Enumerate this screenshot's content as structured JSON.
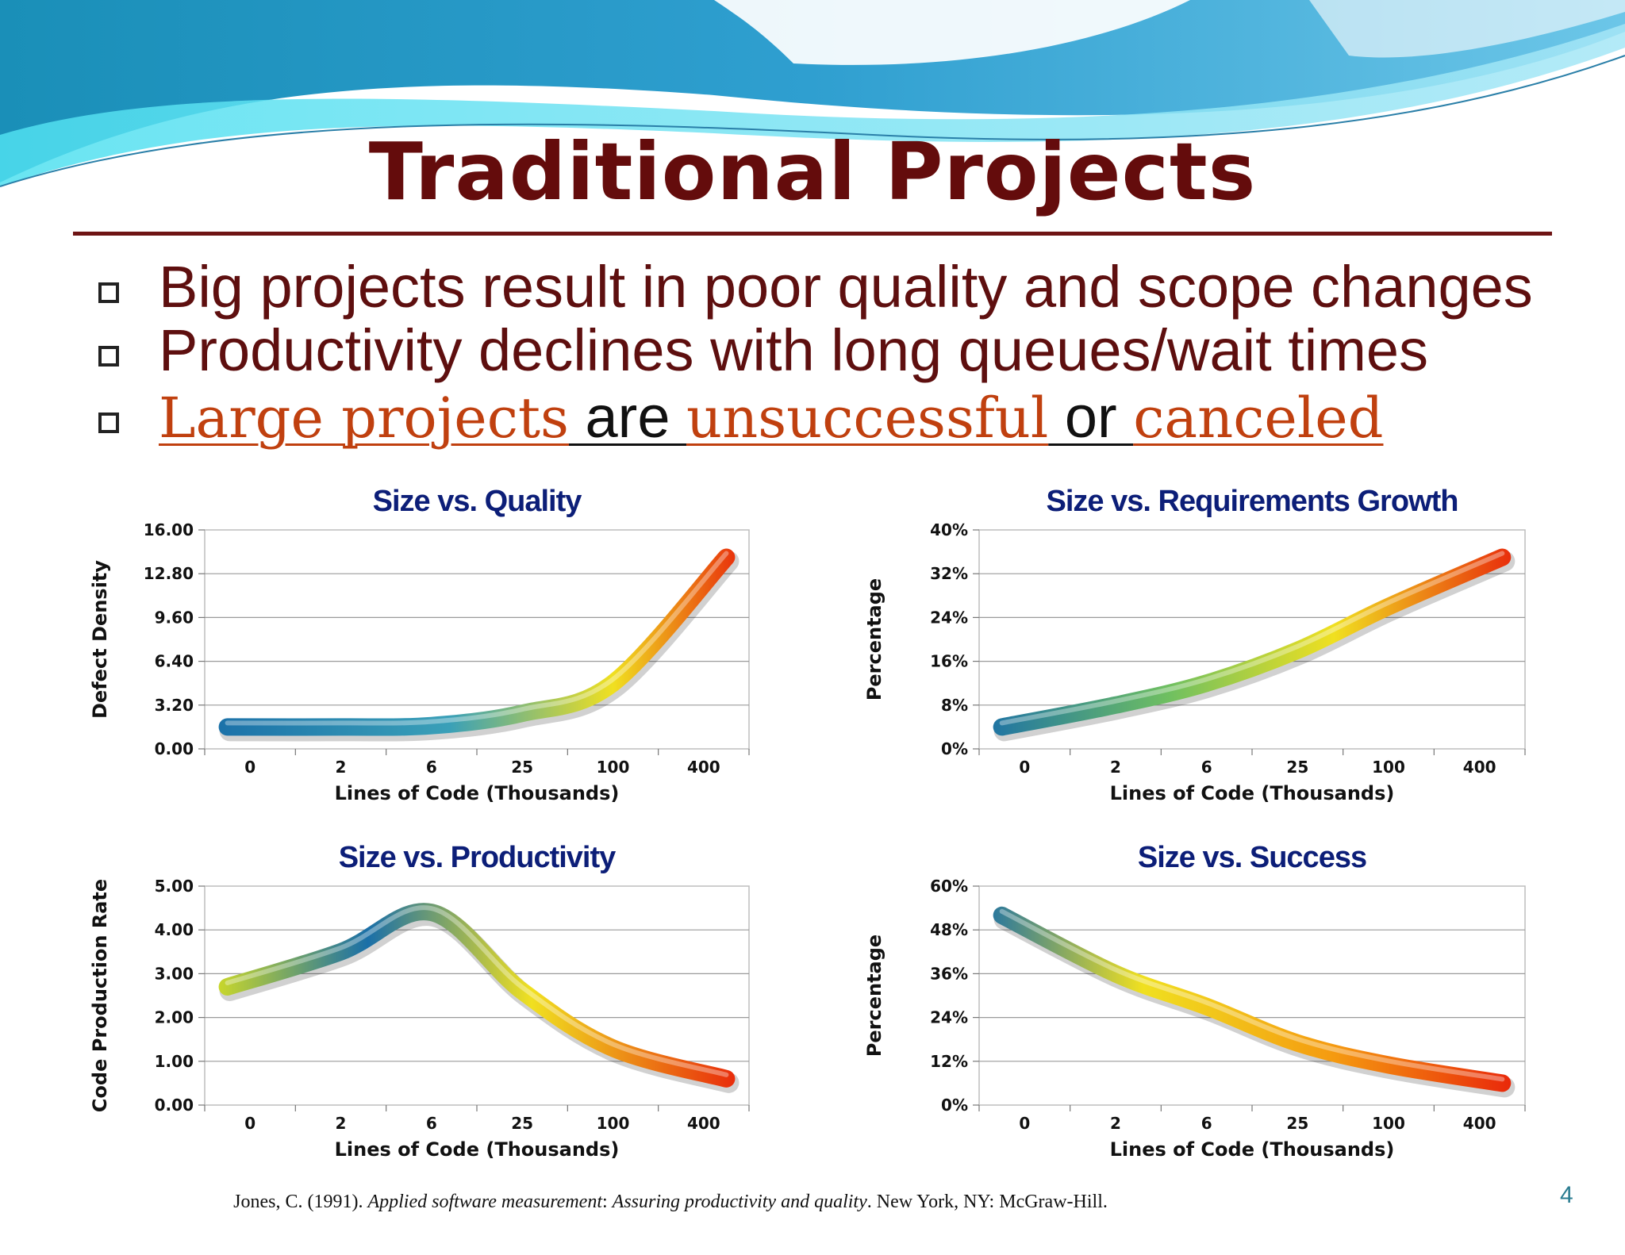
{
  "slide": {
    "title": "Traditional Projects",
    "page_number": "4",
    "bullets": [
      "Big projects result in poor quality and scope changes",
      "Productivity declines with long queues/wait times"
    ],
    "bullet3": {
      "part1": "Large projects",
      "part2": " are ",
      "part3": "unsuccessful",
      "part4": " or ",
      "part5": "canceled"
    },
    "citation": {
      "author": "Jones, C. (1991). ",
      "title_italic": "Applied software measurement",
      "colon": ": ",
      "subtitle_italic": "Assuring productivity and quality",
      "publisher": ". New York, NY: McGraw-Hill."
    },
    "colors": {
      "title": "#640c0c",
      "bullet_text": "#5e0f0f",
      "link": "#c0400f",
      "chart_title": "#0c1e78"
    }
  },
  "chart_data": [
    {
      "type": "line",
      "title": "Size vs. Quality",
      "xlabel": "Lines of Code (Thousands)",
      "ylabel": "Defect Density",
      "categories": [
        "0",
        "2",
        "6",
        "25",
        "100",
        "400"
      ],
      "ylim": [
        0,
        16
      ],
      "yticks": [
        "0.00",
        "3.20",
        "6.40",
        "9.60",
        "12.80",
        "16.00"
      ],
      "values": [
        1.6,
        1.6,
        1.7,
        2.6,
        4.8,
        14.0
      ],
      "grid": true,
      "color_scale": "blue to red"
    },
    {
      "type": "line",
      "title": "Size vs. Requirements Growth",
      "xlabel": "Lines of Code (Thousands)",
      "ylabel": "Percentage",
      "categories": [
        "0",
        "2",
        "6",
        "25",
        "100",
        "400"
      ],
      "ylim": [
        0,
        40
      ],
      "yticks": [
        "0%",
        "8%",
        "16%",
        "24%",
        "32%",
        "40%"
      ],
      "values": [
        4,
        8,
        12,
        18,
        26,
        35
      ],
      "grid": true,
      "color_scale": "blue to red"
    },
    {
      "type": "line",
      "title": "Size vs. Productivity",
      "xlabel": "Lines of Code (Thousands)",
      "ylabel": "Code Production Rate",
      "categories": [
        "0",
        "2",
        "6",
        "25",
        "100",
        "400"
      ],
      "ylim": [
        0,
        5
      ],
      "yticks": [
        "0.00",
        "1.00",
        "2.00",
        "3.00",
        "4.00",
        "5.00"
      ],
      "values": [
        2.7,
        3.5,
        4.4,
        2.6,
        1.3,
        0.6
      ],
      "grid": true,
      "color_scale": "yellow, blue peak, red"
    },
    {
      "type": "line",
      "title": "Size vs. Success",
      "xlabel": "Lines of Code (Thousands)",
      "ylabel": "Percentage",
      "categories": [
        "0",
        "2",
        "6",
        "25",
        "100",
        "400"
      ],
      "ylim": [
        0,
        60
      ],
      "yticks": [
        "0%",
        "12%",
        "24%",
        "36%",
        "48%",
        "60%"
      ],
      "values": [
        52,
        36,
        27,
        17,
        11,
        6
      ],
      "grid": true,
      "color_scale": "blue to red"
    }
  ]
}
